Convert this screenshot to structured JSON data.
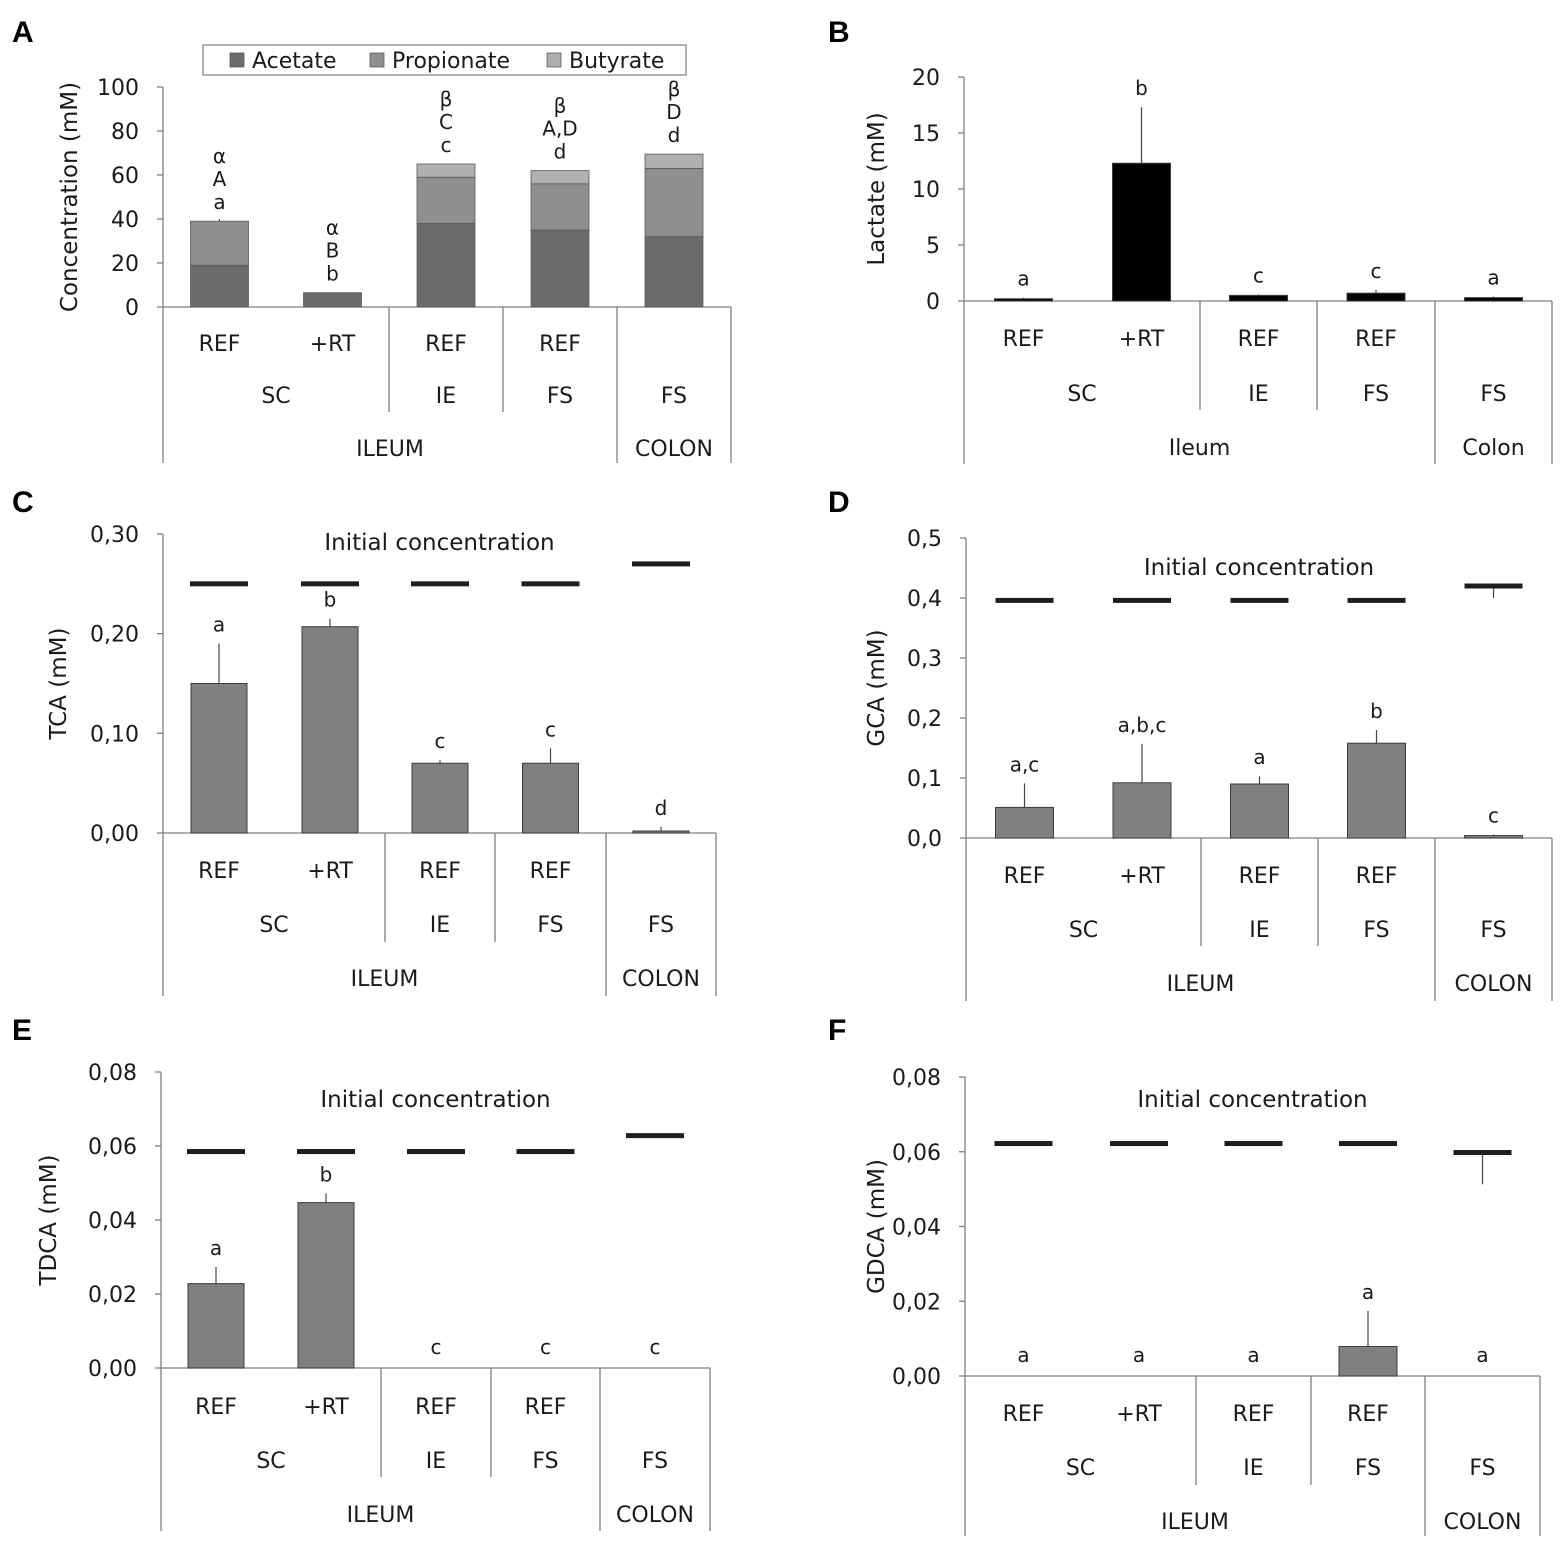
{
  "figure": {
    "colors": {
      "bar": "#808080",
      "bar_dark": "#000000",
      "acetate": "#6b6b6b",
      "propionate": "#8f8f8f",
      "butyrate": "#b0b0b0",
      "initial": "#1e1e1e",
      "axis": "#7f7f7f",
      "text": "#1a1a1a"
    }
  },
  "chart_data": [
    {
      "id": "A",
      "panel_label": "A",
      "type": "bar",
      "stacked": true,
      "ylabel": "Concentration (mM)",
      "ylim": [
        0,
        100
      ],
      "yticks": [
        "0",
        "20",
        "40",
        "60",
        "80",
        "100"
      ],
      "ytick_values": [
        0,
        20,
        40,
        60,
        80,
        100
      ],
      "legend": [
        "Acetate",
        "Propionate",
        "Butyrate"
      ],
      "legend_position": "top",
      "categories": [
        "REF",
        "+RT",
        "REF",
        "REF",
        ""
      ],
      "series": [
        {
          "name": "Acetate",
          "values": [
            19,
            6,
            38,
            35,
            32
          ]
        },
        {
          "name": "Propionate",
          "values": [
            20,
            0.5,
            21,
            21,
            31
          ]
        },
        {
          "name": "Butyrate",
          "values": [
            0,
            0,
            6,
            6,
            6.5
          ]
        }
      ],
      "segment_errors": [
        [
          1,
          1,
          0
        ],
        [
          0.5,
          0,
          0
        ],
        [
          1,
          1,
          0
        ],
        [
          1,
          1,
          0
        ],
        [
          1,
          1,
          0
        ]
      ],
      "annotations": [
        [
          "α",
          "A",
          "a"
        ],
        [
          "α",
          "B",
          "b"
        ],
        [
          "β",
          "C",
          "c"
        ],
        [
          "β",
          "A,D",
          "d"
        ],
        [
          "β",
          "D",
          "d"
        ]
      ],
      "groups_level1": [
        {
          "label": "SC",
          "span": [
            0,
            1
          ]
        },
        {
          "label": "IE",
          "span": [
            2,
            2
          ]
        },
        {
          "label": "FS",
          "span": [
            3,
            3
          ]
        },
        {
          "label": "FS",
          "span": [
            4,
            4
          ]
        }
      ],
      "groups_level2": [
        {
          "label": "ILEUM",
          "span": [
            0,
            3
          ]
        },
        {
          "label": "COLON",
          "span": [
            4,
            4
          ]
        }
      ]
    },
    {
      "id": "B",
      "panel_label": "B",
      "type": "bar",
      "ylabel": "Lactate (mM)",
      "ylim": [
        0,
        20
      ],
      "yticks": [
        "0",
        "5",
        "10",
        "15",
        "20"
      ],
      "ytick_values": [
        0,
        5,
        10,
        15,
        20
      ],
      "categories": [
        "REF",
        "+RT",
        "REF",
        "REF",
        ""
      ],
      "values": [
        0.2,
        12.3,
        0.5,
        0.7,
        0.3
      ],
      "errors": [
        0.1,
        5.0,
        0.1,
        0.3,
        0.1
      ],
      "annotations": [
        "a",
        "b",
        "c",
        "c",
        "a"
      ],
      "bar_color": "dark",
      "groups_level1": [
        {
          "label": "SC",
          "span": [
            0,
            1
          ]
        },
        {
          "label": "IE",
          "span": [
            2,
            2
          ]
        },
        {
          "label": "FS",
          "span": [
            3,
            3
          ]
        },
        {
          "label": "FS",
          "span": [
            4,
            4
          ]
        }
      ],
      "groups_level2": [
        {
          "label": "Ileum",
          "span": [
            0,
            3
          ]
        },
        {
          "label": "Colon",
          "span": [
            4,
            4
          ]
        }
      ]
    },
    {
      "id": "C",
      "panel_label": "C",
      "type": "bar",
      "ylabel": "TCA (mM)",
      "ylim": [
        0,
        0.3
      ],
      "yticks": [
        "0,00",
        "0,10",
        "0,20",
        "0,30"
      ],
      "ytick_values": [
        0,
        0.1,
        0.2,
        0.3
      ],
      "categories": [
        "REF",
        "+RT",
        "REF",
        "REF",
        ""
      ],
      "values": [
        0.15,
        0.207,
        0.07,
        0.07,
        0.002
      ],
      "errors": [
        0.04,
        0.008,
        0.003,
        0.015,
        0.004
      ],
      "annotations": [
        "a",
        "b",
        "c",
        "c",
        "d"
      ],
      "initial_label": "Initial concentration",
      "initial_values": [
        0.25,
        0.25,
        0.25,
        0.25,
        0.27
      ],
      "initial_errors": [
        0.002,
        0.002,
        0.002,
        0.002,
        0.002
      ],
      "groups_level1": [
        {
          "label": "SC",
          "span": [
            0,
            1
          ]
        },
        {
          "label": "IE",
          "span": [
            2,
            2
          ]
        },
        {
          "label": "FS",
          "span": [
            3,
            3
          ]
        },
        {
          "label": "FS",
          "span": [
            4,
            4
          ]
        }
      ],
      "groups_level2": [
        {
          "label": "ILEUM",
          "span": [
            0,
            3
          ]
        },
        {
          "label": "COLON",
          "span": [
            4,
            4
          ]
        }
      ]
    },
    {
      "id": "D",
      "panel_label": "D",
      "type": "bar",
      "ylabel": "GCA (mM)",
      "ylim": [
        0,
        0.5
      ],
      "yticks": [
        "0,0",
        "0,1",
        "0,2",
        "0,3",
        "0,4",
        "0,5"
      ],
      "ytick_values": [
        0,
        0.1,
        0.2,
        0.3,
        0.4,
        0.5
      ],
      "categories": [
        "REF",
        "+RT",
        "REF",
        "REF",
        ""
      ],
      "values": [
        0.051,
        0.092,
        0.09,
        0.158,
        0.004
      ],
      "errors": [
        0.04,
        0.065,
        0.013,
        0.022,
        0.002
      ],
      "annotations": [
        "a,c",
        "a,b,c",
        "a",
        "b",
        "c"
      ],
      "initial_label": "Initial concentration",
      "initial_values": [
        0.396,
        0.396,
        0.396,
        0.396,
        0.42
      ],
      "initial_errors": [
        0.002,
        0.002,
        0.002,
        0.002,
        0.02
      ],
      "groups_level1": [
        {
          "label": "SC",
          "span": [
            0,
            1
          ]
        },
        {
          "label": "IE",
          "span": [
            2,
            2
          ]
        },
        {
          "label": "FS",
          "span": [
            3,
            3
          ]
        },
        {
          "label": "FS",
          "span": [
            4,
            4
          ]
        }
      ],
      "groups_level2": [
        {
          "label": "ILEUM",
          "span": [
            0,
            3
          ]
        },
        {
          "label": "COLON",
          "span": [
            4,
            4
          ]
        }
      ]
    },
    {
      "id": "E",
      "panel_label": "E",
      "type": "bar",
      "ylabel": "TDCA (mM)",
      "ylim": [
        0,
        0.08
      ],
      "yticks": [
        "0,00",
        "0,02",
        "0,04",
        "0,06",
        "0,08"
      ],
      "ytick_values": [
        0,
        0.02,
        0.04,
        0.06,
        0.08
      ],
      "categories": [
        "REF",
        "+RT",
        "REF",
        "REF",
        ""
      ],
      "values": [
        0.0228,
        0.0447,
        0,
        0,
        0
      ],
      "errors": [
        0.0045,
        0.0025,
        0,
        0,
        0
      ],
      "annotations": [
        "a",
        "b",
        "c",
        "c",
        "c"
      ],
      "initial_label": "Initial concentration",
      "initial_values": [
        0.0585,
        0.0585,
        0.0585,
        0.0585,
        0.0628
      ],
      "initial_errors": [
        0.0004,
        0.0004,
        0.0004,
        0.0004,
        0.0004
      ],
      "groups_level1": [
        {
          "label": "SC",
          "span": [
            0,
            1
          ]
        },
        {
          "label": "IE",
          "span": [
            2,
            2
          ]
        },
        {
          "label": "FS",
          "span": [
            3,
            3
          ]
        },
        {
          "label": "FS",
          "span": [
            4,
            4
          ]
        }
      ],
      "groups_level2": [
        {
          "label": "ILEUM",
          "span": [
            0,
            3
          ]
        },
        {
          "label": "COLON",
          "span": [
            4,
            4
          ]
        }
      ]
    },
    {
      "id": "F",
      "panel_label": "F",
      "type": "bar",
      "ylabel": "GDCA (mM)",
      "ylim": [
        0,
        0.08
      ],
      "yticks": [
        "0,00",
        "0,02",
        "0,04",
        "0,06",
        "0,08"
      ],
      "ytick_values": [
        0,
        0.02,
        0.04,
        0.06,
        0.08
      ],
      "categories": [
        "REF",
        "+RT",
        "REF",
        "REF",
        ""
      ],
      "values": [
        0,
        0,
        0,
        0.0079,
        0
      ],
      "errors": [
        0,
        0,
        0,
        0.0095,
        0
      ],
      "annotations": [
        "a",
        "a",
        "a",
        "a",
        "a"
      ],
      "initial_label": "Initial concentration",
      "initial_values": [
        0.0622,
        0.0622,
        0.0622,
        0.0622,
        0.0598
      ],
      "initial_errors": [
        0.0004,
        0.0004,
        0.0004,
        0.0004,
        0.0085
      ],
      "groups_level1": [
        {
          "label": "SC",
          "span": [
            0,
            1
          ]
        },
        {
          "label": "IE",
          "span": [
            2,
            2
          ]
        },
        {
          "label": "FS",
          "span": [
            3,
            3
          ]
        },
        {
          "label": "FS",
          "span": [
            4,
            4
          ]
        }
      ],
      "groups_level2": [
        {
          "label": "ILEUM",
          "span": [
            0,
            3
          ]
        },
        {
          "label": "COLON",
          "span": [
            4,
            4
          ]
        }
      ]
    }
  ]
}
